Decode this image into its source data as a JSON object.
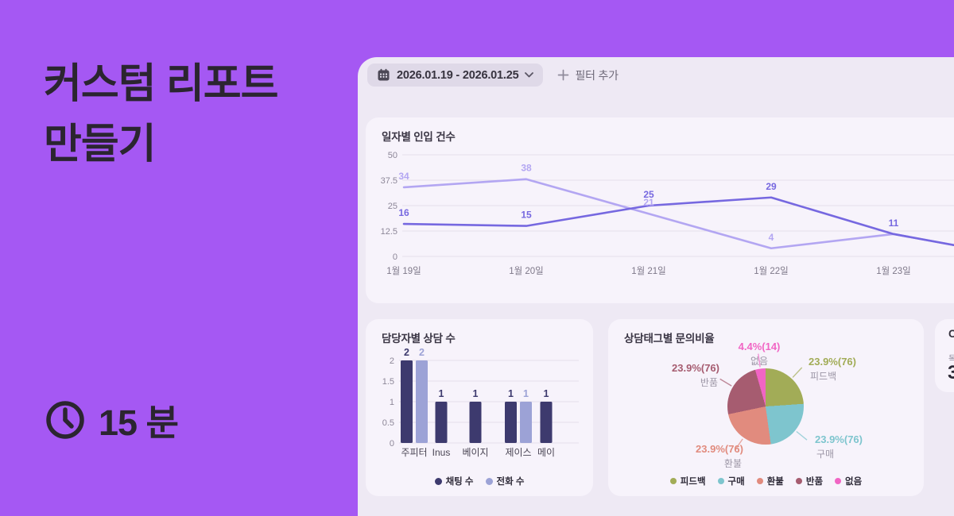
{
  "hero": {
    "title_line1": "커스텀 리포트",
    "title_line2": "만들기",
    "duration": "15 분",
    "bg_color": "#A558F3",
    "text_color": "#2B2530"
  },
  "toolbar": {
    "date_range": "2026.01.19 - 2026.01.25",
    "add_filter_label": "필터 추가"
  },
  "chart_data": [
    {
      "type": "line",
      "title": "일자별 인입 건수",
      "x": [
        "1월 19일",
        "1월 20일",
        "1월 21일",
        "1월 22일",
        "1월 23일"
      ],
      "series": [
        {
          "name": "series-light",
          "color": "#B3A6F2",
          "values": [
            34,
            38,
            21,
            4,
            11
          ]
        },
        {
          "name": "series-dark",
          "color": "#7668E0",
          "values": [
            16,
            15,
            25,
            29,
            11
          ]
        }
      ],
      "ylim": [
        0,
        50
      ],
      "yticks": [
        0,
        12.5,
        25,
        37.5,
        50
      ],
      "grid": true,
      "legend": "none",
      "note_layout": {
        "extends_beyond_right_edge": true
      }
    },
    {
      "type": "bar",
      "title": "담당자별 상담 수",
      "categories": [
        "주피터",
        "Inus",
        "베이지",
        "제이스",
        "메이"
      ],
      "series": [
        {
          "name": "채팅 수",
          "color": "#3D3A6E",
          "values": [
            2,
            1,
            1,
            1,
            1
          ]
        },
        {
          "name": "전화 수",
          "color": "#9CA2D6",
          "values": [
            2,
            null,
            null,
            1,
            null
          ]
        }
      ],
      "ylim": [
        0,
        2
      ],
      "yticks": [
        0,
        0.5,
        1,
        1.5,
        2
      ],
      "grid": true,
      "legend_position": "bottom"
    },
    {
      "type": "pie",
      "title": "상담태그별 문의비율",
      "slices": [
        {
          "label": "피드백",
          "pct": "23.9%",
          "count": 76,
          "value": 23.9,
          "color": "#A2AC57"
        },
        {
          "label": "구매",
          "pct": "23.9%",
          "count": 76,
          "value": 23.9,
          "color": "#7EC5CE"
        },
        {
          "label": "환불",
          "pct": "23.9%",
          "count": 76,
          "value": 23.9,
          "color": "#E18B7E"
        },
        {
          "label": "반품",
          "pct": "23.9%",
          "count": 76,
          "value": 23.9,
          "color": "#A65C70"
        },
        {
          "label": "없음",
          "pct": "4.4%",
          "count": 14,
          "value": 4.4,
          "color": "#F165C4"
        }
      ],
      "legend_position": "bottom",
      "callout_name_color": "#9C96A6"
    }
  ],
  "stat_card": {
    "title": "C",
    "label": "목",
    "value": "3"
  }
}
